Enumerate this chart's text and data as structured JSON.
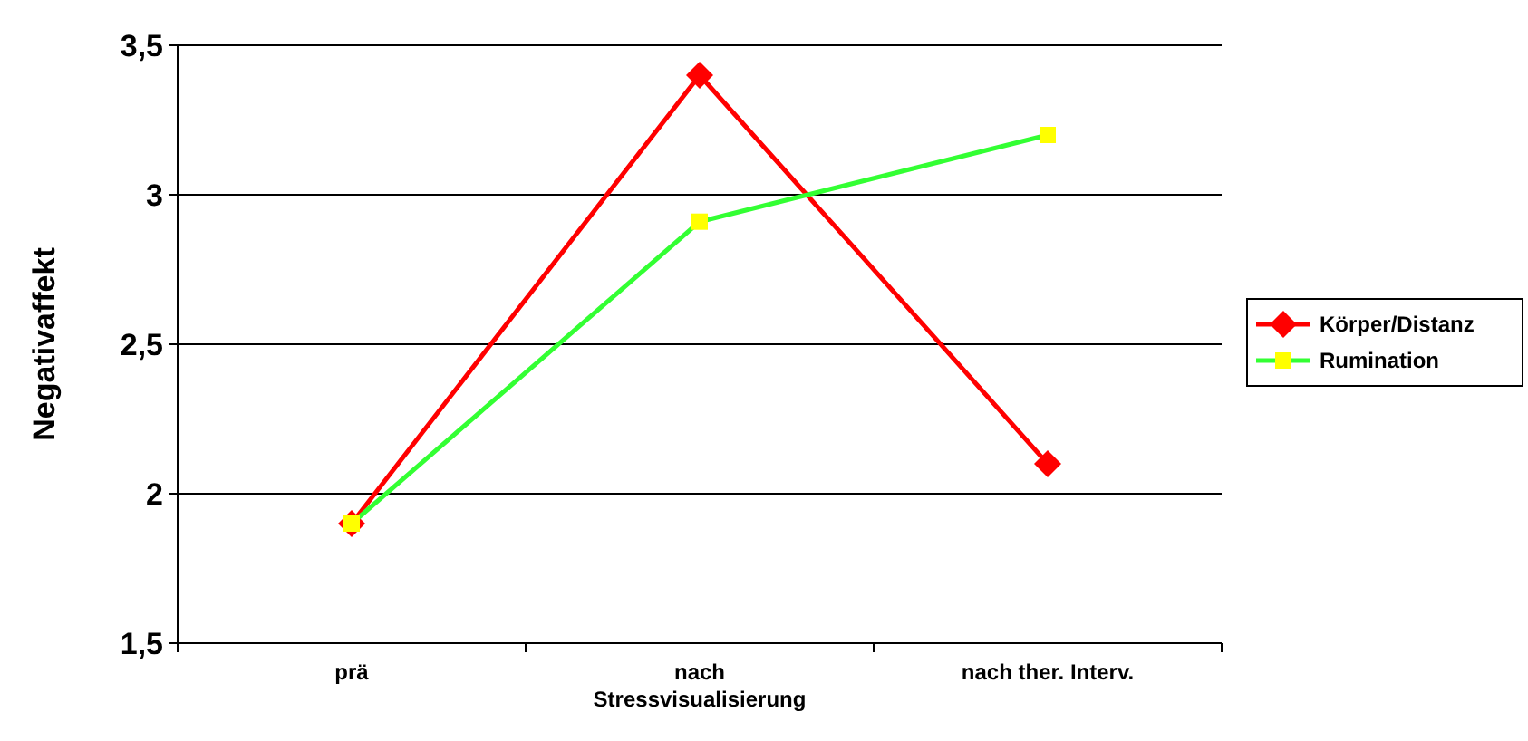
{
  "chart_data": {
    "type": "line",
    "ylabel": "Negativaffekt",
    "categories": [
      "prä",
      "nach Stressvisualisierung",
      "nach ther. Interv."
    ],
    "ylim": [
      1.5,
      3.5
    ],
    "yticks": [
      {
        "value": 1.5,
        "label": "1,5"
      },
      2,
      {
        "value": 2.5,
        "label": "2,5"
      },
      3,
      {
        "value": 3.5,
        "label": "3,5"
      }
    ],
    "grid": "y",
    "legend": "right",
    "series": [
      {
        "name": "Körper/Distanz",
        "color": "#ff0000",
        "marker": "diamond",
        "values": [
          1.9,
          3.4,
          2.1
        ]
      },
      {
        "name": "Rumination",
        "color": "#33ff33",
        "marker": "square",
        "values": [
          1.9,
          2.91,
          3.2
        ]
      }
    ]
  }
}
